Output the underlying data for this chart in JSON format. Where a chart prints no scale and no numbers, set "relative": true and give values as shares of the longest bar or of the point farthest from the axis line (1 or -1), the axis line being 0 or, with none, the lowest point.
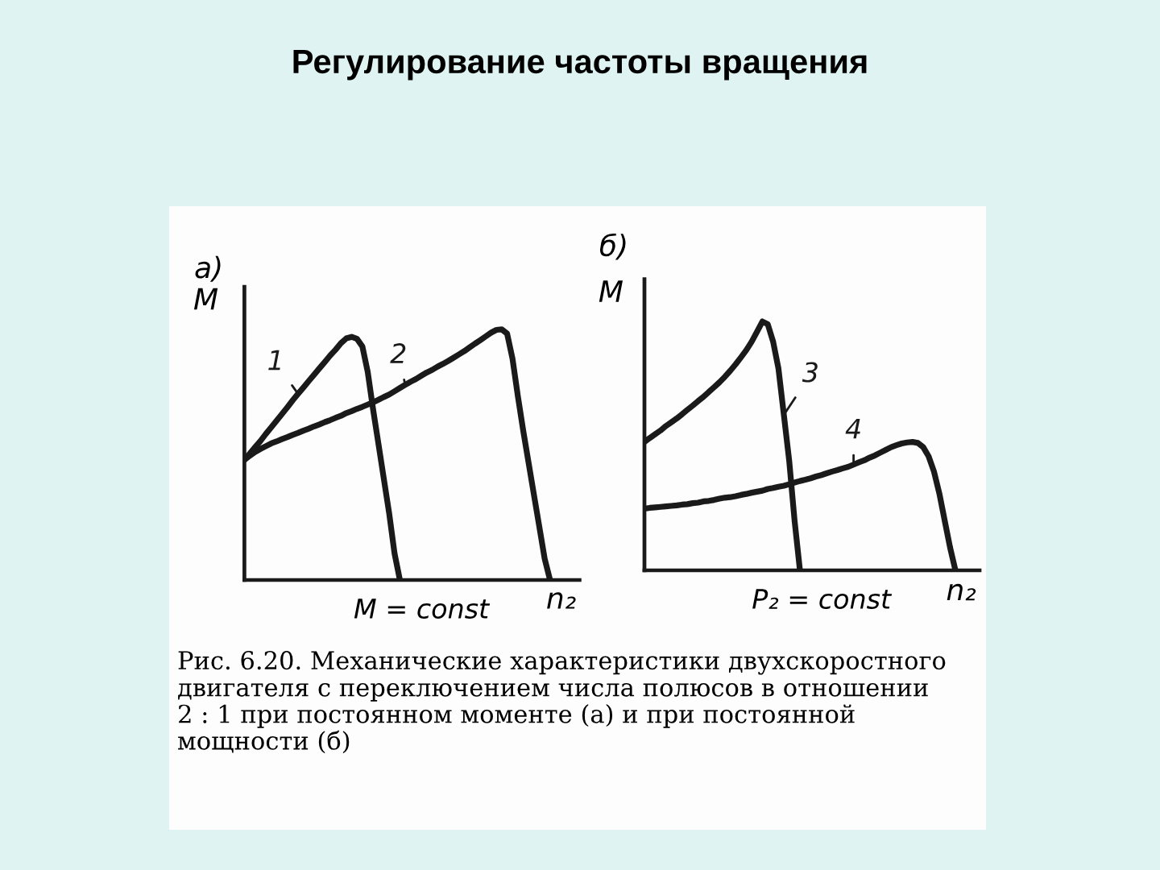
{
  "chart_data": [
    {
      "type": "line",
      "title": "а)",
      "ylabel": "M",
      "xlabel": "n₂",
      "relative": true,
      "line_style": "solid",
      "categories": [
        null,
        null,
        null,
        null,
        null,
        null,
        null,
        null,
        null,
        null,
        null,
        null,
        null,
        null,
        null,
        null,
        null,
        null,
        null,
        null,
        null,
        null,
        null,
        null,
        null,
        null,
        null,
        null,
        null,
        null,
        null,
        null,
        null,
        null,
        null,
        null,
        null,
        null,
        null,
        null,
        null,
        null,
        null,
        null,
        null,
        null,
        null,
        null,
        null,
        null,
        null,
        null,
        null,
        null,
        null,
        null,
        null,
        null,
        null,
        null,
        null,
        null,
        null
      ],
      "series": [
        {
          "name": "1",
          "color": "#1a1a1a",
          "values": [
            0.479,
            0.504,
            0.53,
            0.555,
            0.583,
            0.609,
            0.636,
            0.662,
            0.689,
            0.717,
            0.743,
            0.768,
            0.794,
            0.819,
            0.845,
            0.87,
            0.896,
            0.919,
            0.945,
            0.964,
            0.97,
            0.962,
            0.932,
            0.83,
            0.681,
            0.543,
            0.404,
            0.266,
            0.106,
            0,
            null,
            null,
            null,
            null,
            null,
            null,
            null,
            null,
            null,
            null,
            null,
            null,
            null,
            null,
            null,
            null,
            null,
            null,
            null,
            null,
            null,
            null,
            null,
            null,
            null,
            null,
            null,
            null,
            null,
            null,
            null,
            null,
            null
          ]
        },
        {
          "name": "2",
          "color": "#1a1a1a",
          "values": [
            0.479,
            0.496,
            0.511,
            0.523,
            0.534,
            0.545,
            0.553,
            0.562,
            0.57,
            0.579,
            0.587,
            0.596,
            0.604,
            0.613,
            0.621,
            0.63,
            0.638,
            0.647,
            0.655,
            0.666,
            0.674,
            0.683,
            0.691,
            0.7,
            0.709,
            0.719,
            0.73,
            0.74,
            0.753,
            0.766,
            0.779,
            0.791,
            0.802,
            0.815,
            0.828,
            0.838,
            0.851,
            0.862,
            0.874,
            0.887,
            0.9,
            0.913,
            0.928,
            0.943,
            0.957,
            0.972,
            0.987,
            0.998,
            1.0,
            0.983,
            0.883,
            0.734,
            0.596,
            0.468,
            0.34,
            0.213,
            0.085,
            0,
            null,
            null,
            null,
            null,
            null
          ]
        }
      ],
      "annotations": [
        "M = const",
        "Регулирование частоты вращения"
      ]
    },
    {
      "type": "line",
      "title": "б)",
      "ylabel": "M",
      "xlabel": "n₂",
      "relative": true,
      "line_style": "solid",
      "categories": [
        null,
        null,
        null,
        null,
        null,
        null,
        null,
        null,
        null,
        null,
        null,
        null,
        null,
        null,
        null,
        null,
        null,
        null,
        null,
        null,
        null,
        null,
        null,
        null,
        null,
        null,
        null,
        null,
        null,
        null,
        null,
        null,
        null,
        null,
        null,
        null,
        null,
        null,
        null,
        null,
        null,
        null,
        null,
        null,
        null,
        null,
        null,
        null,
        null,
        null,
        null,
        null,
        null,
        null,
        null,
        null,
        null,
        null,
        null,
        null,
        null,
        null,
        null
      ],
      "series": [
        {
          "name": "3",
          "color": "#1a1a1a",
          "values": [
            0.516,
            0.532,
            0.547,
            0.562,
            0.58,
            0.595,
            0.61,
            0.627,
            0.645,
            0.662,
            0.68,
            0.697,
            0.717,
            0.736,
            0.756,
            0.778,
            0.802,
            0.828,
            0.856,
            0.885,
            0.919,
            0.959,
            1.0,
            0.989,
            0.919,
            0.81,
            0.625,
            0.44,
            0.2,
            0,
            null,
            null,
            null,
            null,
            null,
            null,
            null,
            null,
            null,
            null,
            null,
            null,
            null,
            null,
            null,
            null,
            null,
            null,
            null,
            null,
            null,
            null,
            null,
            null,
            null,
            null,
            null,
            null,
            null,
            null,
            null,
            null,
            null
          ]
        },
        {
          "name": "4",
          "color": "#1a1a1a",
          "values": [
            0.248,
            0.251,
            0.253,
            0.255,
            0.257,
            0.259,
            0.261,
            0.264,
            0.266,
            0.27,
            0.272,
            0.277,
            0.279,
            0.283,
            0.288,
            0.292,
            0.294,
            0.298,
            0.303,
            0.307,
            0.312,
            0.316,
            0.32,
            0.327,
            0.331,
            0.336,
            0.34,
            0.346,
            0.353,
            0.359,
            0.364,
            0.37,
            0.377,
            0.383,
            0.39,
            0.397,
            0.403,
            0.41,
            0.416,
            0.425,
            0.434,
            0.442,
            0.453,
            0.462,
            0.473,
            0.484,
            0.495,
            0.503,
            0.51,
            0.514,
            0.516,
            0.512,
            0.495,
            0.458,
            0.397,
            0.309,
            0.2,
            0.092,
            0,
            null,
            null,
            null,
            null
          ]
        }
      ],
      "annotations": [
        "P₂ = const",
        "Рис. 6.20. Механические характеристики двухскоростного двигателя с переключением числа полюсов в отношении 2 : 1 при постоянном моменте (а) и при постоянной мощности (б)"
      ]
    }
  ]
}
